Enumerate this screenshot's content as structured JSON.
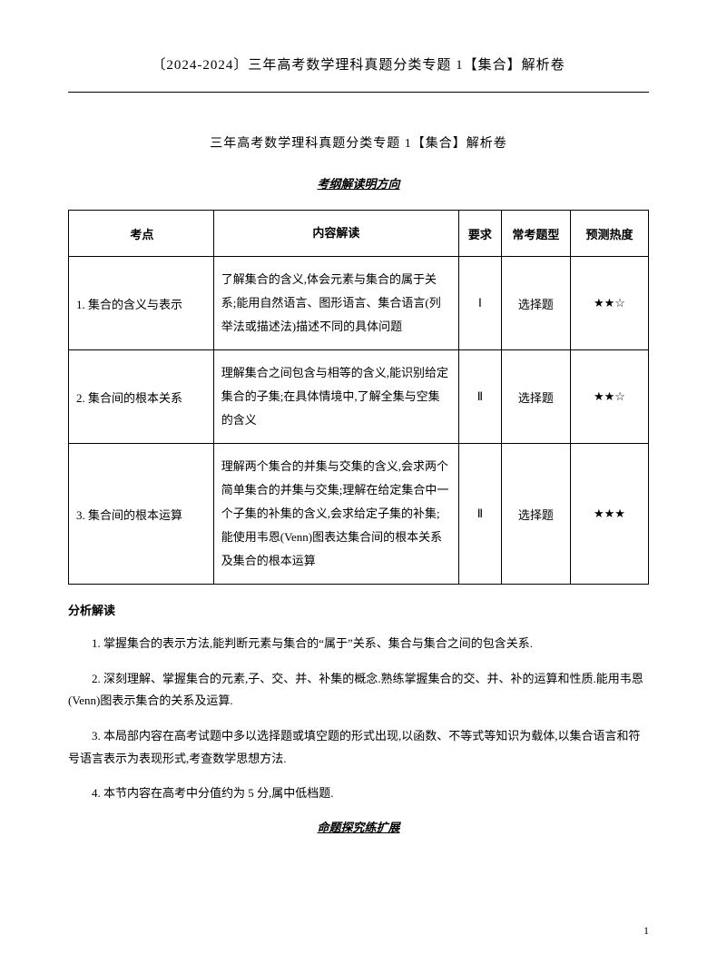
{
  "header": {
    "title": "〔2024-2024〕三年高考数学理科真题分类专题 1【集合】解析卷"
  },
  "subtitle": "三年高考数学理科真题分类专题 1【集合】解析卷",
  "section1_heading": "考纲解读明方向",
  "table": {
    "headers": {
      "point": "考点",
      "content": "内容解读",
      "req": "要求",
      "type": "常考题型",
      "heat": "预测热度"
    },
    "rows": [
      {
        "point": "1. 集合的含义与表示",
        "content": "了解集合的含义,体会元素与集合的属于关系;能用自然语言、图形语言、集合语言(列举法或描述法)描述不同的具体问题",
        "req": "Ⅰ",
        "type": "选择题",
        "heat": "★★☆"
      },
      {
        "point": "2. 集合间的根本关系",
        "content": "理解集合之间包含与相等的含义,能识别给定集合的子集;在具体情境中,了解全集与空集的含义",
        "req": "Ⅱ",
        "type": "选择题",
        "heat": "★★☆"
      },
      {
        "point": "3. 集合间的根本运算",
        "content": "理解两个集合的并集与交集的含义,会求两个简单集合的并集与交集;理解在给定集合中一个子集的补集的含义,会求给定子集的补集;能使用韦恩(Venn)图表达集合间的根本关系及集合的根本运算",
        "req": "Ⅱ",
        "type": "选择题",
        "heat": "★★★"
      }
    ]
  },
  "analysis": {
    "heading": "分析解读",
    "paras": [
      "1. 掌握集合的表示方法,能判断元素与集合的“属于”关系、集合与集合之间的包含关系.",
      "2. 深刻理解、掌握集合的元素,子、交、并、补集的概念.熟练掌握集合的交、并、补的运算和性质.能用韦恩(Venn)图表示集合的关系及运算.",
      "3. 本局部内容在高考试题中多以选择题或填空题的形式出现,以函数、不等式等知识为载体,以集合语言和符号语言表示为表现形式,考查数学思想方法.",
      "4. 本节内容在高考中分值约为 5 分,属中低档题."
    ]
  },
  "section2_heading": "命题探究练扩展",
  "page_number": "1"
}
